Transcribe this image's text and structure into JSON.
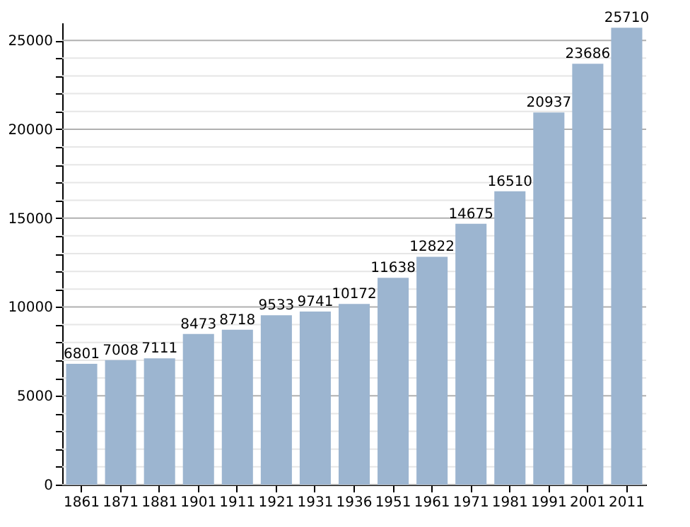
{
  "chart_data": {
    "type": "bar",
    "categories": [
      "1861",
      "1871",
      "1881",
      "1901",
      "1911",
      "1921",
      "1931",
      "1936",
      "1951",
      "1961",
      "1971",
      "1981",
      "1991",
      "2001",
      "2011"
    ],
    "values": [
      6801,
      7008,
      7111,
      8473,
      8718,
      9533,
      9741,
      10172,
      11638,
      12822,
      14675,
      16510,
      20937,
      23686,
      25710
    ],
    "color": "#9cb5d0",
    "ylim": [
      0,
      26000
    ],
    "yticks": [
      0,
      {
        "value": 1000,
        "label": null
      },
      {
        "value": 2000,
        "label": null
      },
      {
        "value": 3000,
        "label": null
      },
      {
        "value": 4000,
        "label": null
      },
      5000,
      {
        "value": 6000,
        "label": null
      },
      {
        "value": 7000,
        "label": null
      },
      {
        "value": 8000,
        "label": null
      },
      {
        "value": 9000,
        "label": null
      },
      10000,
      {
        "value": 11000,
        "label": null
      },
      {
        "value": 12000,
        "label": null
      },
      {
        "value": 13000,
        "label": null
      },
      {
        "value": 14000,
        "label": null
      },
      15000,
      {
        "value": 16000,
        "label": null
      },
      {
        "value": 17000,
        "label": null
      },
      {
        "value": 18000,
        "label": null
      },
      {
        "value": 19000,
        "label": null
      },
      20000,
      {
        "value": 21000,
        "label": null
      },
      {
        "value": 22000,
        "label": null
      },
      {
        "value": 23000,
        "label": null
      },
      {
        "value": 24000,
        "label": null
      },
      25000
    ],
    "grid": true,
    "data_labels": true
  }
}
